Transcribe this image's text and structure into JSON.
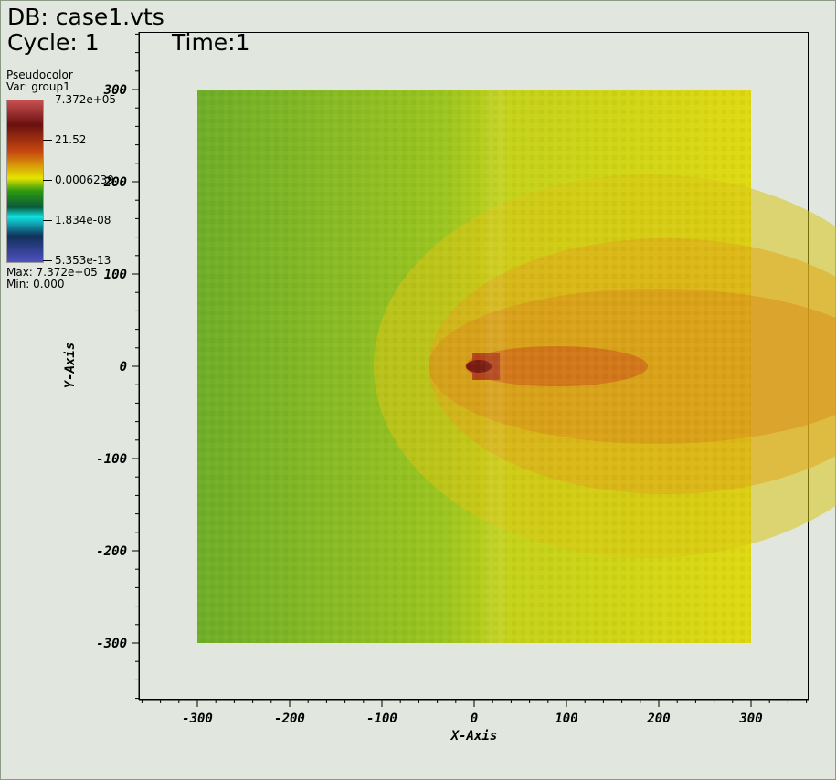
{
  "header": {
    "db_label": "DB: case1.vts",
    "cycle_label": "Cycle: 1",
    "time_label": "Time:1"
  },
  "legend": {
    "plot_type": "Pseudocolor",
    "variable": "Var: group1",
    "labels": [
      "7.372e+05",
      "21.52",
      "0.0006239",
      "1.834e-08",
      "5.353e-13"
    ],
    "max_label": "Max:  7.372e+05",
    "min_label": "Min:  0.000"
  },
  "colors": {
    "background": "#e1e7df",
    "field_base_left": "#76b326",
    "field_base_right": "#d9d50f",
    "plume_orange": "#d98a1c",
    "plume_dark": "#7a1c12"
  },
  "chart_data": {
    "type": "heatmap",
    "title": "",
    "xlabel": "X-Axis",
    "ylabel": "Y-Axis",
    "xlim": [
      -300,
      300
    ],
    "ylim": [
      -300,
      300
    ],
    "x_ticks": [
      "-300",
      "-200",
      "-100",
      "0",
      "100",
      "200",
      "300"
    ],
    "y_ticks": [
      "300",
      "200",
      "100",
      "0",
      "-100",
      "-200",
      "-300"
    ],
    "x_values": [
      -300,
      -200,
      -100,
      0,
      100,
      200,
      300
    ],
    "y_values": [
      300,
      200,
      100,
      0,
      -100,
      -200,
      -300
    ],
    "source_x": 10,
    "source_y": 0,
    "colormap": "hot_desaturated",
    "value_range": [
      0.0,
      737200
    ],
    "grid": false
  }
}
